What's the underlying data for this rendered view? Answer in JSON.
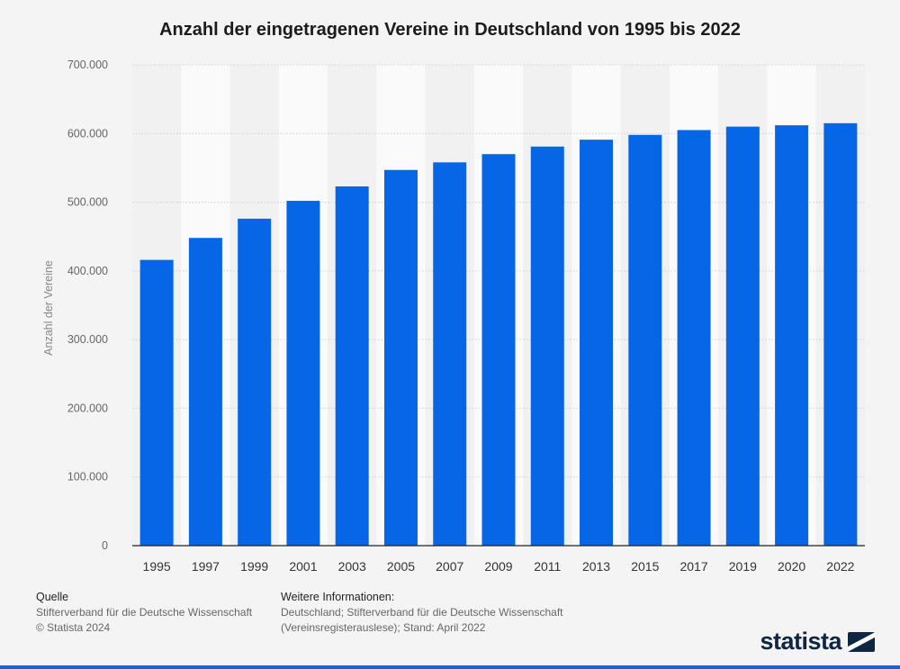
{
  "chart_data": {
    "type": "bar",
    "title": "Anzahl der eingetragenen Vereine in Deutschland von 1995 bis 2022",
    "xlabel": "",
    "ylabel": "Anzahl der Vereine",
    "ylim": [
      0,
      700000
    ],
    "yticks": [
      0,
      100000,
      200000,
      300000,
      400000,
      500000,
      600000,
      700000
    ],
    "ytick_labels": [
      "0",
      "100.000",
      "200.000",
      "300.000",
      "400.000",
      "500.000",
      "600.000",
      "700.000"
    ],
    "categories": [
      "1995",
      "1997",
      "1999",
      "2001",
      "2003",
      "2005",
      "2007",
      "2009",
      "2011",
      "2013",
      "2015",
      "2017",
      "2019",
      "2020",
      "2022"
    ],
    "values": [
      416000,
      448000,
      476000,
      502000,
      523000,
      547000,
      558000,
      570000,
      581000,
      591000,
      598000,
      605000,
      610000,
      612000,
      615000
    ],
    "bar_color": "#0666e5",
    "grid": true
  },
  "footer": {
    "source_heading": "Quelle",
    "source_line1": "Stifterverband für die Deutsche Wissenschaft",
    "source_line2": "© Statista 2024",
    "info_heading": "Weitere Informationen:",
    "info_line1": "Deutschland; Stifterverband für die Deutsche Wissenschaft",
    "info_line2": "(Vereinsregisterauslese); Stand: April 2022"
  },
  "brand": {
    "logo_text": "statista",
    "color": "#0f2643",
    "accent": "#0666e5"
  }
}
